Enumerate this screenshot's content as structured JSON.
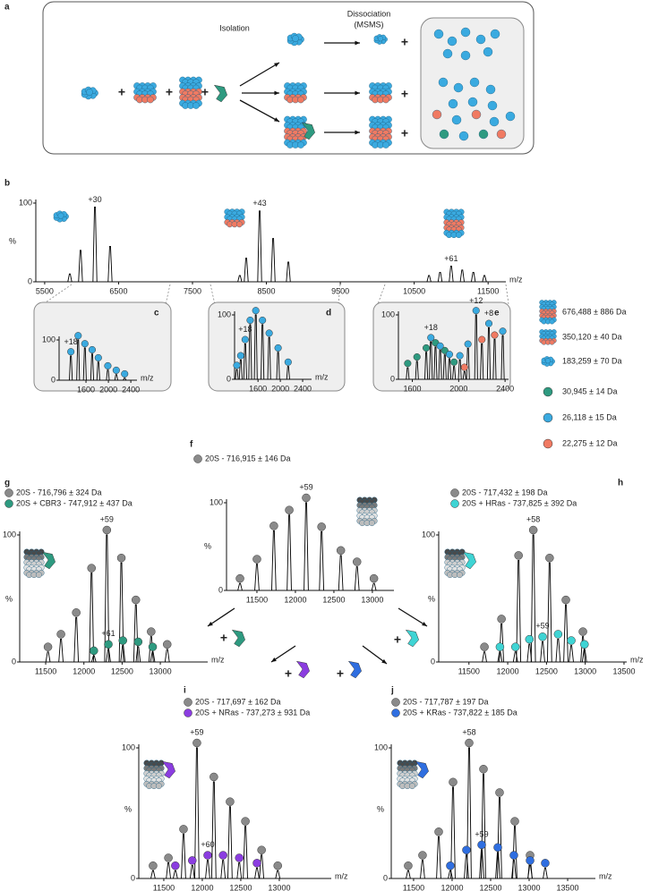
{
  "panel_a": {
    "label": "a",
    "isolation": "Isolation",
    "dissociation": "Dissociation",
    "msms": "(MSMS)"
  },
  "plus": "+",
  "species_legend": [
    {
      "text": "676,488 ± 886 Da"
    },
    {
      "text": "350,120 ± 40 Da"
    },
    {
      "text": "183,259 ± 70 Da"
    },
    {
      "text": "30,945 ± 14 Da",
      "color": "#2e9a80"
    },
    {
      "text": "26,118 ± 15 Da",
      "color": "#3aaae0"
    },
    {
      "text": "22,275 ± 12 Da",
      "color": "#f07a62"
    }
  ],
  "chart_data": [
    {
      "type": "line",
      "label": "b",
      "y_label": "%",
      "x_label": "m/z",
      "xlim": [
        5380,
        11740
      ],
      "ylim": [
        0,
        100
      ],
      "xticks": [
        5500,
        6500,
        7500,
        8500,
        9500,
        10500,
        11500
      ],
      "yticks": [
        0,
        100
      ],
      "markers": false,
      "series": [
        {
          "color": "#000000",
          "x": [
            5840,
            5985,
            6180,
            6385,
            8140,
            8227,
            8409,
            8591,
            8797,
            10700,
            10850,
            11000,
            11150,
            11300,
            11450
          ],
          "values": [
            10,
            40,
            95,
            45,
            8,
            30,
            90,
            55,
            25,
            8,
            12,
            20,
            15,
            12,
            8
          ]
        }
      ],
      "annotations": [
        "+30",
        "+43",
        "+61"
      ]
    },
    {
      "type": "line",
      "label": "c",
      "x_label": "m/z",
      "xlim": [
        1120,
        2510
      ],
      "ylim": [
        0,
        100
      ],
      "xticks": [
        1600,
        2000,
        2400
      ],
      "yticks": [
        0,
        100
      ],
      "markers": true,
      "series": [
        {
          "color": "#3aaae0",
          "x": [
            1330,
            1460,
            1580,
            1710,
            1820,
            1990,
            2140,
            2290
          ],
          "values": [
            60,
            100,
            80,
            65,
            45,
            25,
            14,
            5
          ]
        }
      ],
      "annotations": [
        "+18"
      ]
    },
    {
      "type": "line",
      "label": "d",
      "x_label": "m/z",
      "xlim": [
        1180,
        2560
      ],
      "ylim": [
        0,
        100
      ],
      "xticks": [
        1600,
        2000,
        2400
      ],
      "yticks": [
        0,
        100
      ],
      "markers": true,
      "series": [
        {
          "color": "#3aaae0",
          "x": [
            1220,
            1290,
            1370,
            1460,
            1560,
            1680,
            1800,
            1960,
            2140
          ],
          "values": [
            15,
            30,
            55,
            85,
            100,
            85,
            65,
            42,
            20
          ]
        }
      ],
      "annotations": [
        "+18"
      ]
    },
    {
      "type": "line",
      "label": "e",
      "xlim": [
        1480,
        2430
      ],
      "ylim": [
        0,
        100
      ],
      "xticks": [
        1600,
        2000,
        2400
      ],
      "yticks": [
        0,
        100
      ],
      "markers": true,
      "series": [
        {
          "color": "#2e9a80",
          "x": [
            1560,
            1640,
            1720,
            1800,
            1880,
            1960
          ],
          "values": [
            18,
            28,
            42,
            50,
            38,
            20
          ]
        },
        {
          "color": "#3aaae0",
          "x": [
            1760,
            1840,
            1920,
            2010,
            2080,
            2150,
            2260,
            2380
          ],
          "values": [
            58,
            45,
            32,
            30,
            48,
            100,
            80,
            68
          ]
        },
        {
          "color": "#f07a62",
          "x": [
            2050,
            2200,
            2310
          ],
          "values": [
            12,
            55,
            62
          ]
        }
      ],
      "annotations": [
        "+18",
        "+12",
        "+8"
      ]
    },
    {
      "type": "line",
      "label": "f",
      "y_label": "%",
      "xlim": [
        11105,
        13280
      ],
      "ylim": [
        0,
        100
      ],
      "xticks": [
        11500,
        12000,
        12500,
        13000
      ],
      "yticks": [
        0,
        100
      ],
      "markers": true,
      "series": [
        {
          "name": "20S - 716,915 ± 146 Da",
          "color": "#8a8a8a",
          "x": [
            11280,
            11500,
            11720,
            11920,
            12140,
            12340,
            12590,
            12800,
            13020
          ],
          "values": [
            8,
            30,
            68,
            86,
            100,
            67,
            40,
            27,
            8
          ]
        }
      ],
      "annotations": [
        "+59"
      ]
    },
    {
      "type": "line",
      "label": "g",
      "y_label": "%",
      "x_label": "m/z",
      "xlim": [
        11160,
        13620
      ],
      "ylim": [
        0,
        100
      ],
      "xticks": [
        11500,
        12000,
        12500,
        13000
      ],
      "yticks": [
        0,
        100
      ],
      "markers": true,
      "series": [
        {
          "name": "20S - 716,796 ± 324 Da",
          "color": "#8a8a8a",
          "x": [
            11530,
            11700,
            11900,
            12100,
            12300,
            12490,
            12680,
            12880,
            13090
          ],
          "values": [
            8,
            18,
            35,
            70,
            100,
            78,
            45,
            20,
            10
          ]
        },
        {
          "name": "20S + CBR3 - 747,912 ± 437 Da",
          "color": "#2e9a80",
          "x": [
            12130,
            12320,
            12510,
            12710,
            12900
          ],
          "values": [
            5,
            10,
            13,
            12,
            8
          ]
        }
      ],
      "annotations": [
        "+59",
        "+61"
      ]
    },
    {
      "type": "line",
      "label": "h",
      "y_label": "%",
      "x_label": "m/z",
      "xlim": [
        11110,
        13535
      ],
      "ylim": [
        0,
        100
      ],
      "xticks": [
        11500,
        12000,
        12500,
        13000,
        13500
      ],
      "yticks": [
        0,
        100
      ],
      "markers": true,
      "series": [
        {
          "name": "20S - 717,432 ± 198 Da",
          "color": "#8a8a8a",
          "x": [
            11700,
            11920,
            12140,
            12330,
            12540,
            12750,
            12970
          ],
          "values": [
            8,
            30,
            80,
            100,
            78,
            45,
            20
          ]
        },
        {
          "name": "20S + HRas - 737,825 ± 392 Da",
          "color": "#3fd4d4",
          "x": [
            11900,
            12100,
            12280,
            12450,
            12650,
            12820,
            12990
          ],
          "values": [
            8,
            8,
            14,
            16,
            18,
            13,
            10
          ]
        }
      ],
      "annotations": [
        "+58",
        "+59"
      ]
    },
    {
      "type": "line",
      "label": "i",
      "y_label": "%",
      "x_label": "m/z",
      "xlim": [
        11175,
        13675
      ],
      "ylim": [
        0,
        100
      ],
      "xticks": [
        11500,
        12000,
        12500,
        13000
      ],
      "yticks": [
        0,
        100
      ],
      "markers": true,
      "series": [
        {
          "name": "20S - 717,697 ± 162 Da",
          "color": "#8a8a8a",
          "x": [
            11360,
            11560,
            11756,
            11930,
            12150,
            12360,
            12560,
            12770,
            12980
          ],
          "values": [
            6,
            12,
            34,
            100,
            74,
            55,
            40,
            18,
            6
          ]
        },
        {
          "name": "20S + NRas - 737,273 ± 931 Da",
          "color": "#8b3de0",
          "x": [
            11650,
            11870,
            12070,
            12270,
            12480,
            12710
          ],
          "values": [
            6,
            10,
            14,
            14,
            12,
            8
          ]
        }
      ],
      "annotations": [
        "+59",
        "+60"
      ]
    },
    {
      "type": "line",
      "label": "j",
      "y_label": "%",
      "x_label": "m/z",
      "xlim": [
        11210,
        13860
      ],
      "ylim": [
        0,
        100
      ],
      "xticks": [
        11500,
        12000,
        12500,
        13000,
        13500
      ],
      "yticks": [
        0,
        100
      ],
      "markers": true,
      "series": [
        {
          "name": "20S - 717,787 ± 197 Da",
          "color": "#8a8a8a",
          "x": [
            11430,
            11616,
            11826,
            12012,
            12221,
            12407,
            12616,
            12814,
            13012
          ],
          "values": [
            6,
            14,
            32,
            70,
            100,
            80,
            62,
            40,
            14
          ]
        },
        {
          "name": "20S + KRas - 737,822 ± 185 Da",
          "color": "#2f6ee0",
          "x": [
            11977,
            12186,
            12384,
            12593,
            12802,
            13012,
            13209
          ],
          "values": [
            6,
            18,
            22,
            20,
            14,
            10,
            8
          ]
        }
      ],
      "annotations": [
        "+58",
        "+59"
      ]
    }
  ]
}
